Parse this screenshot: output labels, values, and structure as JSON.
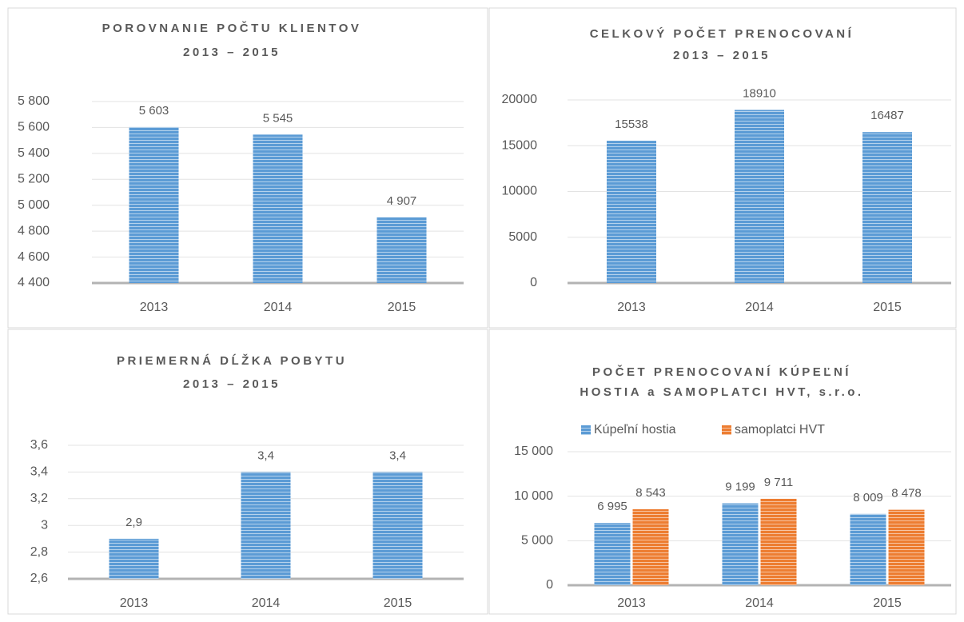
{
  "chart_data": [
    {
      "type": "bar",
      "title": [
        "POROVNANIE POČTU KLIENTOV",
        "2013 – 2015"
      ],
      "categories": [
        "2013",
        "2014",
        "2015"
      ],
      "values": [
        5603,
        5545,
        4907
      ],
      "value_labels": [
        "5 603",
        "5 545",
        "4 907"
      ],
      "color": "#5b9bd5",
      "ylim": [
        4400,
        5800
      ],
      "yticks": [
        {
          "value": 4400,
          "label": "4 400"
        },
        {
          "value": 4600,
          "label": "4 600"
        },
        {
          "value": 4800,
          "label": "4 800"
        },
        {
          "value": 5000,
          "label": "5 000"
        },
        {
          "value": 5200,
          "label": "5 200"
        },
        {
          "value": 5400,
          "label": "5 400"
        },
        {
          "value": 5600,
          "label": "5 600"
        },
        {
          "value": 5800,
          "label": "5 800"
        }
      ],
      "grid": true
    },
    {
      "type": "bar",
      "title": [
        "CELKOVÝ POČET PRENOCOVANÍ",
        "2013 – 2015"
      ],
      "categories": [
        "2013",
        "2014",
        "2015"
      ],
      "values": [
        15538,
        18910,
        16487
      ],
      "color": "#5b9bd5",
      "ylim": [
        0,
        20000
      ],
      "yticks": [
        0,
        5000,
        10000,
        15000,
        20000
      ],
      "grid": true
    },
    {
      "type": "bar",
      "title": [
        "PRIEMERNÁ DĹŽKA POBYTU",
        "2013 – 2015"
      ],
      "categories": [
        "2013",
        "2014",
        "2015"
      ],
      "values": [
        2.9,
        3.4,
        3.4
      ],
      "value_labels": [
        "2,9",
        "3,4",
        "3,4"
      ],
      "color": "#5b9bd5",
      "ylim": [
        2.6,
        3.6
      ],
      "yticks": [
        {
          "value": 2.6,
          "label": "2,6"
        },
        {
          "value": 2.8,
          "label": "2,8"
        },
        3,
        {
          "value": 3.2,
          "label": "3,2"
        },
        {
          "value": 3.4,
          "label": "3,4"
        },
        {
          "value": 3.6,
          "label": "3,6"
        }
      ],
      "grid": true
    },
    {
      "type": "grouped_bar",
      "title": [
        "POČET PRENOCOVANÍ KÚPEĽNÍ",
        "HOSTIA a SAMOPLATCI HVT, s.r.o."
      ],
      "categories": [
        "2013",
        "2014",
        "2015"
      ],
      "series": [
        {
          "name": "Kúpeľní hostia",
          "color": "#5b9bd5",
          "values": [
            6995,
            9199,
            8009
          ],
          "value_labels": [
            "6 995",
            "9 199",
            "8 009"
          ]
        },
        {
          "name": "samoplatci HVT",
          "color": "#ed7d31",
          "values": [
            8543,
            9711,
            8478
          ],
          "value_labels": [
            "8 543",
            "9 711",
            "8 478"
          ]
        }
      ],
      "ylim": [
        0,
        15000
      ],
      "yticks": [
        0,
        {
          "value": 5000,
          "label": "5 000"
        },
        {
          "value": 10000,
          "label": "10 000"
        },
        {
          "value": 15000,
          "label": "15 000"
        }
      ],
      "grid": true,
      "legend": "top"
    }
  ]
}
